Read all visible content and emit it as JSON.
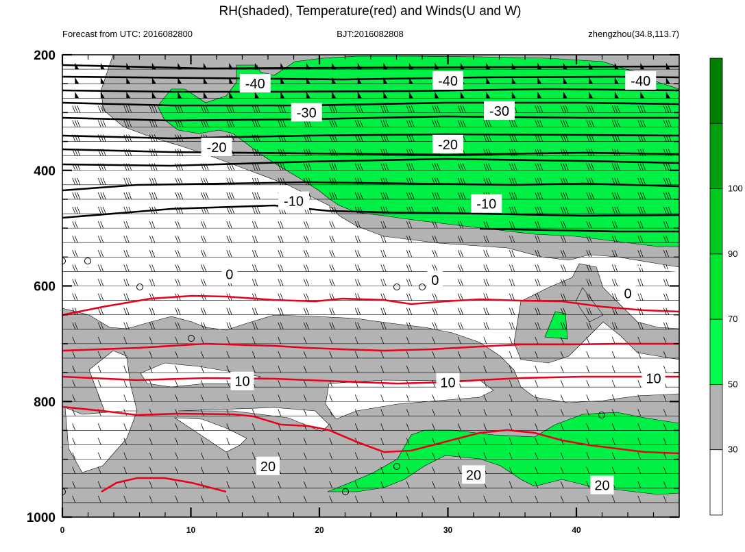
{
  "chart_data": {
    "type": "contour",
    "title": "RH(shaded), Temperature(red) and Winds(U and W)",
    "subtitle_left": "Forecast from UTC: 2016082800",
    "subtitle_center": "BJT:2016082808",
    "subtitle_right": "zhengzhou(34.8,113.7)",
    "x_ticks": [
      0,
      10,
      20,
      30,
      40
    ],
    "x_range": [
      0,
      48
    ],
    "y_ticks": [
      200,
      400,
      600,
      800,
      1000
    ],
    "y_range": [
      200,
      1000
    ],
    "colorbar": {
      "labels": [
        30,
        50,
        70,
        90,
        100
      ],
      "colors": [
        "#ffffff",
        "#b3b3b3",
        "#00ff4a",
        "#00e62e",
        "#00c81e",
        "#00a00f",
        "#008000"
      ]
    },
    "temperature_labels": [
      {
        "text": "-40",
        "x": 15,
        "p": 250
      },
      {
        "text": "-40",
        "x": 30,
        "p": 245
      },
      {
        "text": "-40",
        "x": 45,
        "p": 245
      },
      {
        "text": "-30",
        "x": 19,
        "p": 300
      },
      {
        "text": "-30",
        "x": 34,
        "p": 297
      },
      {
        "text": "-20",
        "x": 12,
        "p": 360
      },
      {
        "text": "-20",
        "x": 30,
        "p": 355
      },
      {
        "text": "-10",
        "x": 18,
        "p": 453
      },
      {
        "text": "-10",
        "x": 33,
        "p": 458
      },
      {
        "text": "0",
        "x": 13,
        "p": 580
      },
      {
        "text": "0",
        "x": 29,
        "p": 590
      },
      {
        "text": "0",
        "x": 44,
        "p": 613
      },
      {
        "text": "10",
        "x": 14,
        "p": 765
      },
      {
        "text": "10",
        "x": 30,
        "p": 767
      },
      {
        "text": "10",
        "x": 46,
        "p": 760
      },
      {
        "text": "20",
        "x": 16,
        "p": 912
      },
      {
        "text": "20",
        "x": 32,
        "p": 927
      },
      {
        "text": "20",
        "x": 42,
        "p": 945
      }
    ]
  }
}
